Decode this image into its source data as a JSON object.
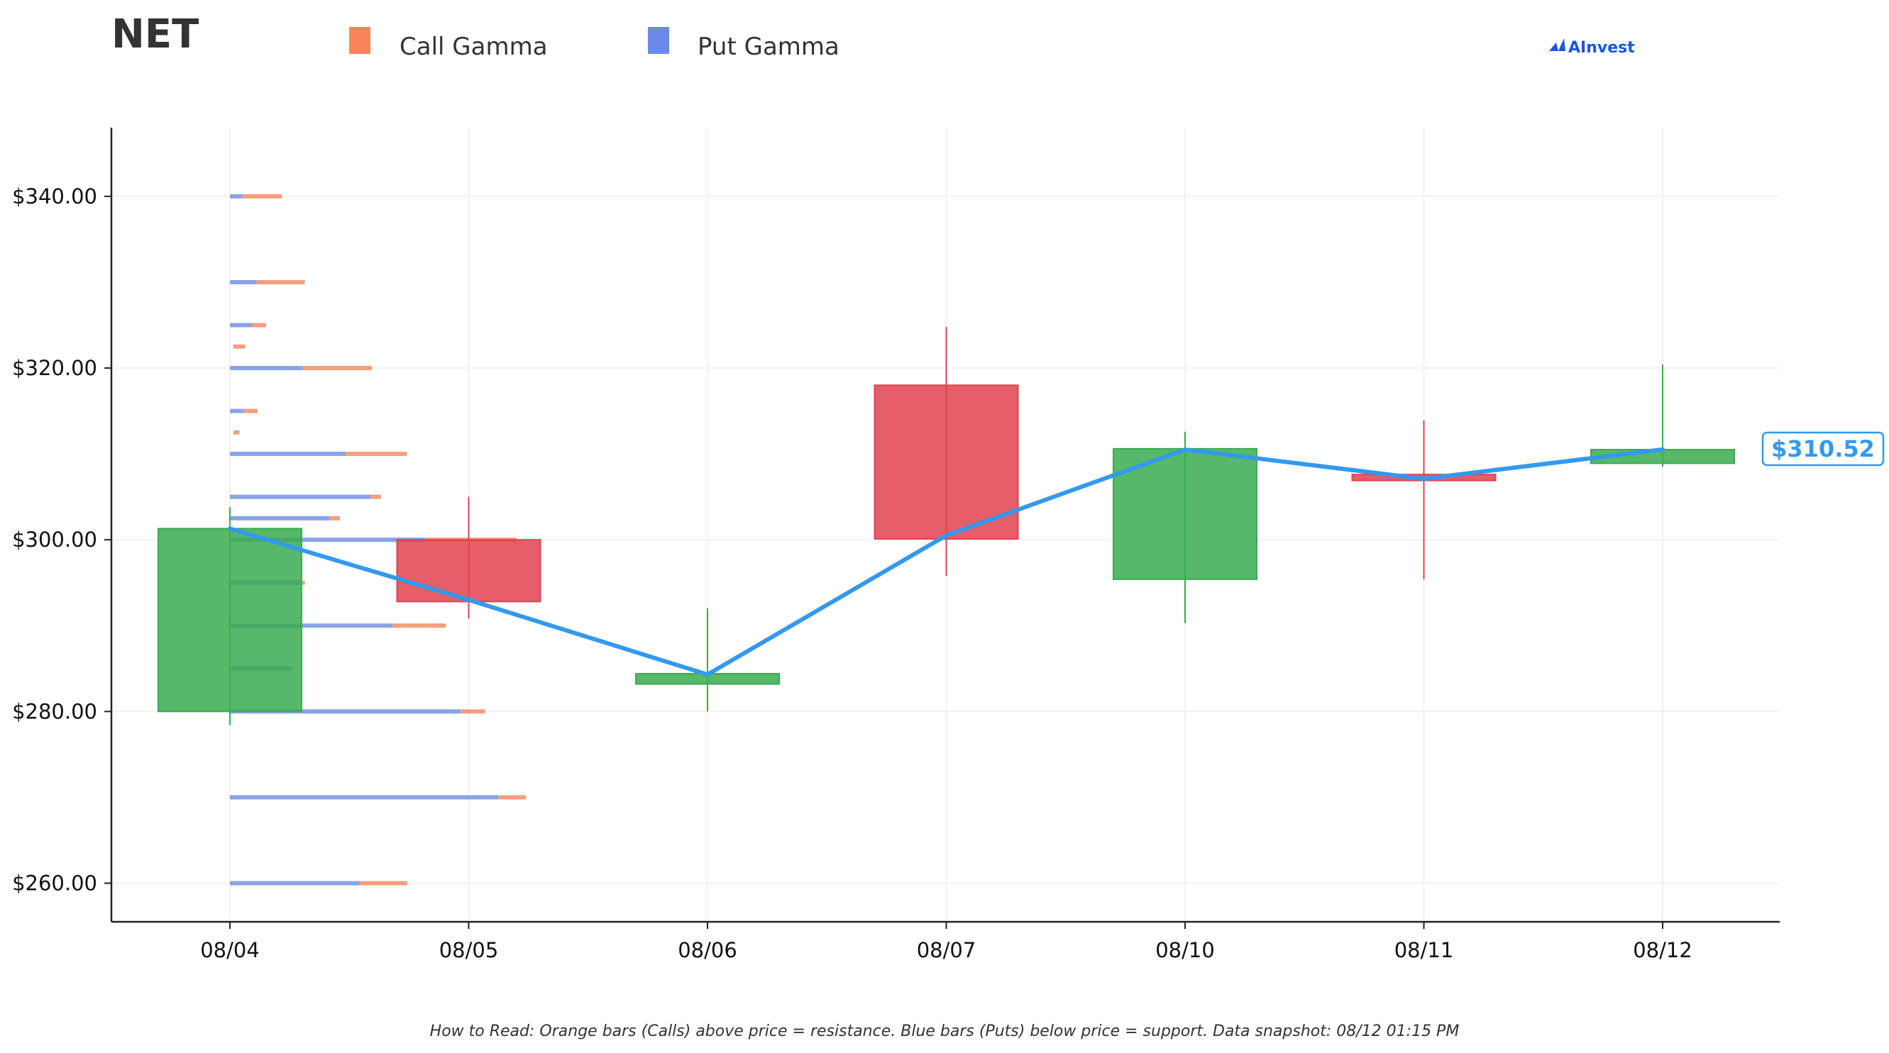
{
  "ticker": "NET",
  "logo": "AInvest",
  "legend": [
    {
      "label": "Call Gamma",
      "color": "#f9845a"
    },
    {
      "label": "Put Gamma",
      "color": "#6b8ae8"
    }
  ],
  "current_price_label": "$310.52",
  "footnote": "How to Read: Orange bars (Calls) above price = resistance. Blue bars (Puts) below price = support. Data snapshot: 08/12 01:15 PM",
  "colors": {
    "up": "#3aab4f",
    "down": "#e0424f",
    "call": "#f4956e",
    "put": "#7d99e6",
    "line": "#3399ee",
    "axis": "#222222",
    "grid": "#eeeeee"
  },
  "chart_data": {
    "type": "candlestick",
    "categories": [
      "08/04",
      "08/05",
      "08/06",
      "08/07",
      "08/10",
      "08/11",
      "08/12"
    ],
    "ylim": [
      255.5,
      348
    ],
    "yticks": [
      260,
      280,
      300,
      320,
      340
    ],
    "ytick_labels": [
      "$260.00",
      "$280.00",
      "$300.00",
      "$320.00",
      "$340.00"
    ],
    "grid": true,
    "candles": [
      {
        "date": "08/04",
        "open": 280.0,
        "high": 303.8,
        "low": 278.4,
        "close": 301.3
      },
      {
        "date": "08/05",
        "open": 300.0,
        "high": 305.0,
        "low": 290.8,
        "close": 292.8
      },
      {
        "date": "08/06",
        "open": 283.2,
        "high": 292.0,
        "low": 280.0,
        "close": 284.4
      },
      {
        "date": "08/07",
        "open": 318.0,
        "high": 324.8,
        "low": 295.8,
        "close": 300.1
      },
      {
        "date": "08/10",
        "open": 295.4,
        "high": 312.6,
        "low": 290.3,
        "close": 310.6
      },
      {
        "date": "08/11",
        "open": 307.6,
        "high": 313.9,
        "low": 295.4,
        "close": 306.9
      },
      {
        "date": "08/12",
        "open": 308.9,
        "high": 320.4,
        "low": 308.5,
        "close": 310.5
      }
    ],
    "close_line": [
      301.3,
      293.0,
      284.3,
      300.5,
      310.5,
      307.1,
      310.52
    ],
    "gamma_levels": [
      {
        "strike": 340,
        "put": 0.27,
        "call": 0.84
      },
      {
        "strike": 330,
        "put": 0.57,
        "call": 1.03
      },
      {
        "strike": 325,
        "put": 0.47,
        "call": 0.3
      },
      {
        "strike": 322.5,
        "put": 0.0,
        "call": 0.25
      },
      {
        "strike": 320,
        "put": 1.55,
        "call": 1.48
      },
      {
        "strike": 315,
        "put": 0.3,
        "call": 0.29
      },
      {
        "strike": 312.5,
        "put": 0.0,
        "call": 0.13
      },
      {
        "strike": 310,
        "put": 2.47,
        "call": 1.31
      },
      {
        "strike": 305,
        "put": 3.0,
        "call": 0.23
      },
      {
        "strike": 302.5,
        "put": 2.13,
        "call": 0.22
      },
      {
        "strike": 300,
        "put": 4.17,
        "call": 1.95
      },
      {
        "strike": 295,
        "put": 1.5,
        "call": 0.1
      },
      {
        "strike": 290,
        "put": 3.47,
        "call": 1.14
      },
      {
        "strike": 285,
        "put": 1.3,
        "call": 0.07
      },
      {
        "strike": 280,
        "put": 4.93,
        "call": 0.52
      },
      {
        "strike": 270,
        "put": 5.73,
        "call": 0.59
      },
      {
        "strike": 260,
        "put": 2.77,
        "call": 1.02
      }
    ]
  }
}
